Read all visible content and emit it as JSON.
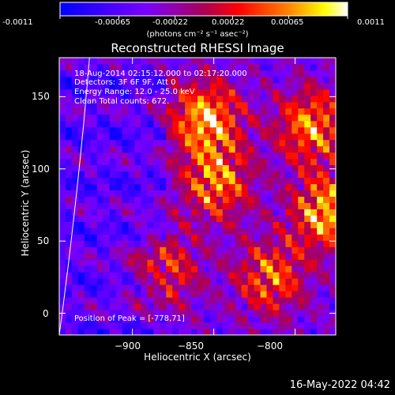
{
  "window": {
    "timestamp": "16-May-2022 04:42"
  },
  "colorbar": {
    "ticks": [
      "-0.0011",
      "-0.00065",
      "-0.00022",
      "0.00022",
      "0.00065",
      "0.0011"
    ],
    "unit_label": "(photons cm⁻² s⁻¹ asec⁻²)",
    "range": [
      -0.0011,
      0.0011
    ],
    "colors": [
      "#0000ff",
      "#7a00ff",
      "#ff0000",
      "#ff8800",
      "#ffff00",
      "#ffffff"
    ]
  },
  "annotations": {
    "line1": "18-Aug-2014 02:15:12.000 to 02:17:20.000",
    "line2": "Detectors: 3F 6F 9F, Att 0",
    "line3": "Energy Range: 12.0 - 25.0 keV",
    "line4": "Clean    Total counts: 672.",
    "peak": "Position of Peak = [-778,71]"
  },
  "chart_data": {
    "type": "heatmap",
    "title": "Reconstructed RHESSI Image",
    "xlabel": "Heliocentric X (arcsec)",
    "ylabel": "Heliocentric Y (arcsec)",
    "xlim": [
      -945,
      -775
    ],
    "ylim": [
      -15,
      177
    ],
    "xticks": [
      -900,
      -850,
      -800
    ],
    "xtick_labels": [
      "−900",
      "−850",
      "−800"
    ],
    "yticks": [
      0,
      50,
      100,
      150
    ],
    "ytick_labels": [
      "0",
      "50",
      "100",
      "150"
    ],
    "peak_position": [
      -778,
      71
    ],
    "bright_regions": [
      {
        "x": -855,
        "y": 135,
        "level": 0.0011
      },
      {
        "x": -848,
        "y": 90,
        "level": 0.0008
      },
      {
        "x": -780,
        "y": 70,
        "level": 0.0011
      },
      {
        "x": -790,
        "y": 130,
        "level": 0.0009
      },
      {
        "x": -815,
        "y": 25,
        "level": 0.0007
      },
      {
        "x": -880,
        "y": 30,
        "level": 0.0005
      }
    ],
    "colormap_min": -0.0011,
    "colormap_max": 0.0011
  }
}
